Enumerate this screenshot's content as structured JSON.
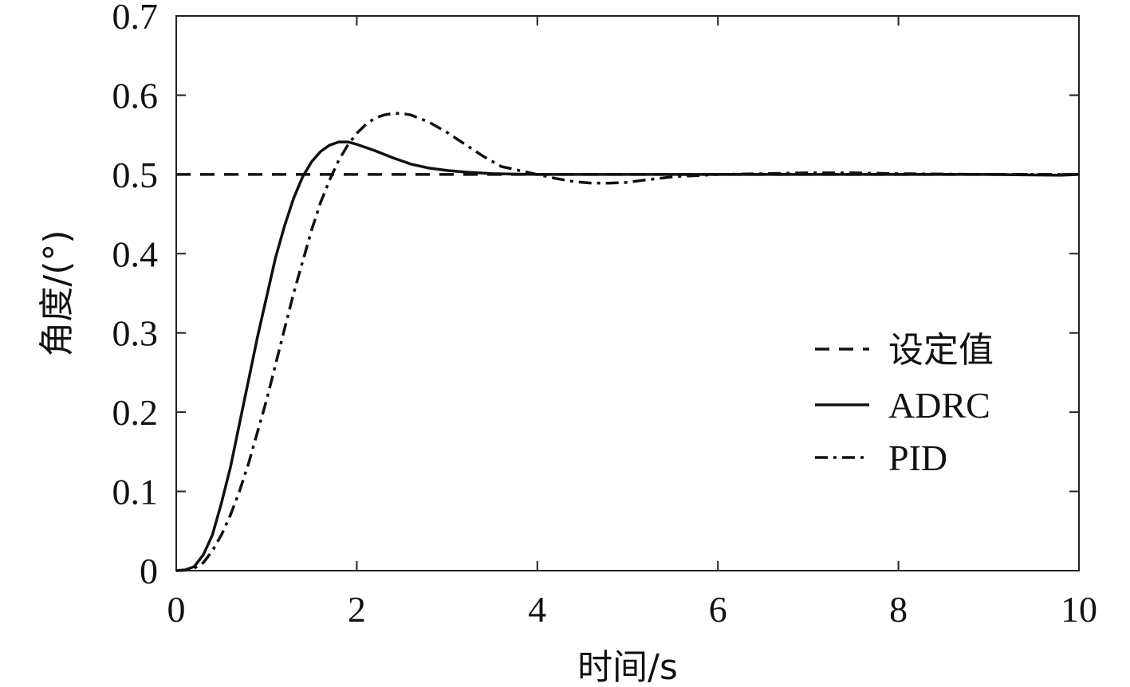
{
  "chart_data": {
    "type": "line",
    "xlabel": "时间/s",
    "ylabel": "角度/(°)",
    "xlim": [
      0,
      10
    ],
    "ylim": [
      0,
      0.7
    ],
    "xticks": [
      0,
      2,
      4,
      6,
      8,
      10
    ],
    "yticks": [
      0,
      0.1,
      0.2,
      0.3,
      0.4,
      0.5,
      0.6,
      0.7
    ],
    "xtick_labels": [
      "0",
      "2",
      "4",
      "6",
      "8",
      "10"
    ],
    "ytick_labels": [
      "0",
      "0.1",
      "0.2",
      "0.3",
      "0.4",
      "0.5",
      "0.6",
      "0.7"
    ],
    "grid": false,
    "legend_position": "right",
    "series": [
      {
        "name": "设定值",
        "style": "dashed",
        "x": [
          0,
          10
        ],
        "y": [
          0.5,
          0.5
        ]
      },
      {
        "name": "ADRC",
        "style": "solid",
        "x": [
          0,
          0.1,
          0.2,
          0.3,
          0.4,
          0.5,
          0.6,
          0.7,
          0.8,
          0.9,
          1.0,
          1.1,
          1.2,
          1.3,
          1.4,
          1.5,
          1.6,
          1.7,
          1.8,
          1.9,
          2.0,
          2.2,
          2.4,
          2.6,
          2.8,
          3.0,
          3.2,
          3.5,
          4.0,
          5.0,
          6.0,
          7.0,
          8.0,
          9.0,
          9.8,
          10.0
        ],
        "y": [
          0,
          0.001,
          0.005,
          0.02,
          0.045,
          0.085,
          0.13,
          0.185,
          0.24,
          0.295,
          0.345,
          0.395,
          0.435,
          0.47,
          0.497,
          0.516,
          0.529,
          0.537,
          0.541,
          0.541,
          0.538,
          0.53,
          0.521,
          0.513,
          0.508,
          0.505,
          0.503,
          0.501,
          0.5,
          0.5,
          0.5,
          0.5,
          0.5,
          0.5,
          0.499,
          0.5
        ]
      },
      {
        "name": "PID",
        "style": "dashdot",
        "x": [
          0,
          0.1,
          0.2,
          0.3,
          0.4,
          0.5,
          0.6,
          0.7,
          0.8,
          0.9,
          1.0,
          1.1,
          1.2,
          1.3,
          1.4,
          1.5,
          1.6,
          1.7,
          1.8,
          1.9,
          2.0,
          2.1,
          2.2,
          2.3,
          2.4,
          2.5,
          2.6,
          2.8,
          3.0,
          3.2,
          3.4,
          3.6,
          3.8,
          4.0,
          4.2,
          4.4,
          4.6,
          4.8,
          5.0,
          5.2,
          5.5,
          6.0,
          6.5,
          7.0,
          7.5,
          8.0,
          9.0,
          10.0
        ],
        "y": [
          0,
          0.0005,
          0.003,
          0.01,
          0.025,
          0.045,
          0.07,
          0.1,
          0.135,
          0.175,
          0.215,
          0.26,
          0.305,
          0.35,
          0.39,
          0.43,
          0.465,
          0.493,
          0.518,
          0.537,
          0.552,
          0.563,
          0.571,
          0.575,
          0.577,
          0.577,
          0.575,
          0.566,
          0.553,
          0.538,
          0.523,
          0.51,
          0.505,
          0.5,
          0.495,
          0.491,
          0.489,
          0.489,
          0.49,
          0.493,
          0.497,
          0.5,
          0.501,
          0.502,
          0.502,
          0.501,
          0.5,
          0.5
        ]
      }
    ]
  }
}
